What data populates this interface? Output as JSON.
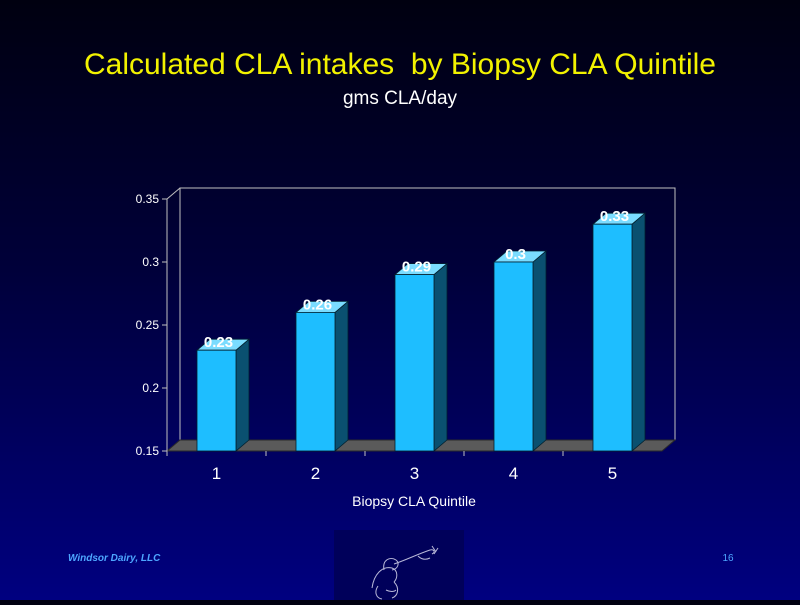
{
  "slide": {
    "title": "Calculated CLA intakes  by Biopsy CLA Quintile",
    "subtitle": "gms CLA/day",
    "footer_left": "Windsor Dairy, LLC",
    "page_number": "16",
    "logo_icon": "sketch-figure-logo"
  },
  "colors": {
    "bar_front": "#1ebeff",
    "bar_side": "#0a5070",
    "bar_top": "#7adcff",
    "floor": "#5a5a5a",
    "title": "#f2f200",
    "text": "#ffffff"
  },
  "chart_data": {
    "type": "bar",
    "title": "Calculated CLA intakes  by Biopsy CLA Quintile",
    "subtitle": "gms CLA/day",
    "xlabel": "Biopsy CLA Quintile",
    "ylabel": "",
    "categories": [
      "1",
      "2",
      "3",
      "4",
      "5"
    ],
    "values": [
      0.23,
      0.26,
      0.29,
      0.3,
      0.33
    ],
    "data_labels": [
      "0.23",
      "0.26",
      "0.29",
      "0.3",
      "0.33"
    ],
    "ylim": [
      0.15,
      0.35
    ],
    "yticks": [
      "0.15",
      "0.2",
      "0.25",
      "0.3",
      "0.35"
    ],
    "grid": false,
    "legend": "none",
    "style": "3d"
  }
}
